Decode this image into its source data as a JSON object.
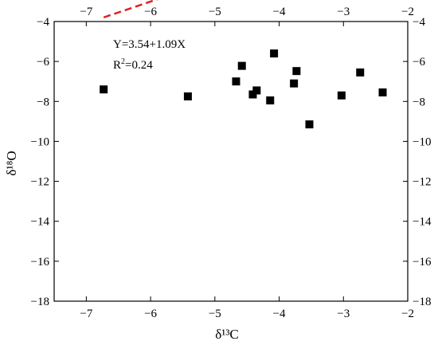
{
  "chart_data": {
    "type": "scatter",
    "xlabel": "δ¹³C",
    "ylabel": "δ¹⁸O",
    "xlim": [
      -7.5,
      -2
    ],
    "ylim": [
      -18,
      -4
    ],
    "x_ticks": [
      -7,
      -6,
      -5,
      -4,
      -3,
      -2
    ],
    "y_ticks": [
      -18,
      -16,
      -14,
      -12,
      -10,
      -8,
      -6,
      -4
    ],
    "mirror_axes": true,
    "grid": false,
    "annotations": {
      "equation": "Y=3.54+1.09X",
      "r2_prefix": "R",
      "r2_sup": "2",
      "r2_value": "=0.24"
    },
    "points": [
      {
        "x": -6.73,
        "y": -7.4
      },
      {
        "x": -5.42,
        "y": -7.75
      },
      {
        "x": -4.67,
        "y": -7.0
      },
      {
        "x": -4.58,
        "y": -6.22
      },
      {
        "x": -4.41,
        "y": -7.65
      },
      {
        "x": -4.35,
        "y": -7.45
      },
      {
        "x": -4.14,
        "y": -7.95
      },
      {
        "x": -4.08,
        "y": -5.6
      },
      {
        "x": -3.77,
        "y": -7.1
      },
      {
        "x": -3.73,
        "y": -6.48
      },
      {
        "x": -3.53,
        "y": -9.15
      },
      {
        "x": -3.03,
        "y": -7.7
      },
      {
        "x": -2.74,
        "y": -6.55
      },
      {
        "x": -2.39,
        "y": -7.55
      }
    ],
    "fit_line": {
      "intercept": 3.54,
      "slope": 1.09,
      "x_start": -6.73,
      "x_end": -2.5,
      "color": "#e02020",
      "style": "dashed"
    },
    "marker_color": "#000000"
  }
}
